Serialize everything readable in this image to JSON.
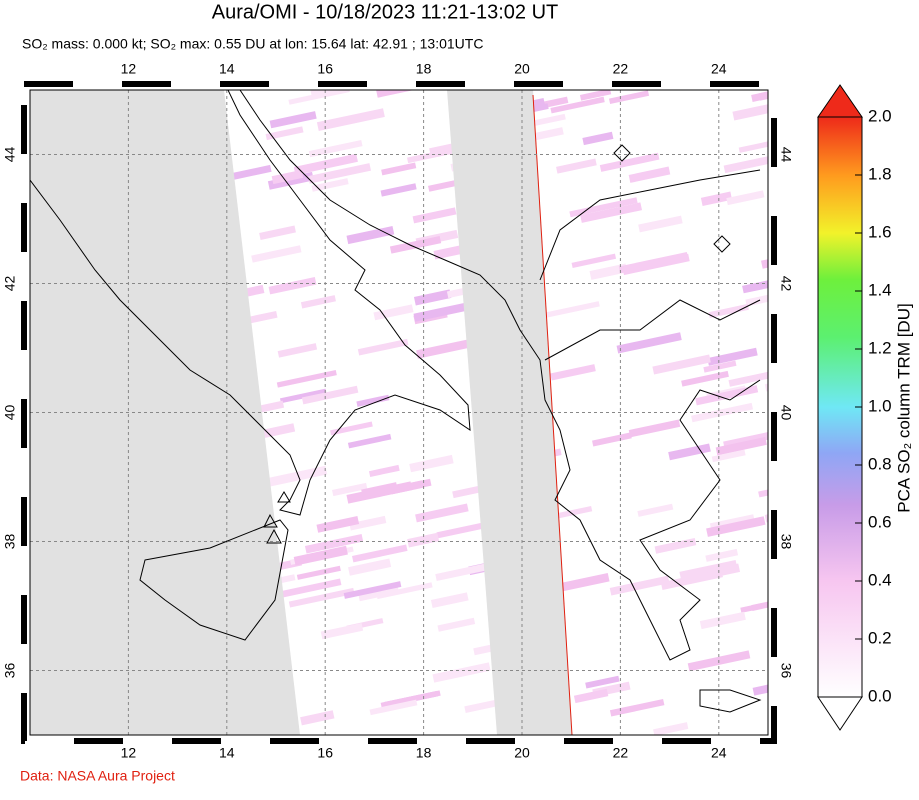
{
  "chart_data": {
    "type": "map",
    "title": "Aura/OMI - 10/18/2023 11:21-13:02 UT",
    "subtitle": "SO₂ mass: 0.000 kt; SO₂ max: 0.55 DU at lon: 15.64 lat: 42.91 ; 13:01UTC",
    "xlim": [
      10,
      25
    ],
    "ylim": [
      35,
      45
    ],
    "xticks": [
      12,
      14,
      16,
      18,
      20,
      22,
      24
    ],
    "yticks": [
      36,
      38,
      40,
      42,
      44
    ],
    "grid": true,
    "colorbar": {
      "label": "PCA SO₂ column TRM [DU]",
      "lim": [
        0,
        2
      ],
      "ticks": [
        {
          "value": 0,
          "label": "0.0"
        },
        0.2,
        0.4,
        0.6,
        0.8,
        {
          "value": 1,
          "label": "1.0"
        },
        1.2,
        1.4,
        1.6,
        1.8,
        {
          "value": 2,
          "label": "2.0"
        }
      ]
    }
  },
  "footer": "Data: NASA Aura Project"
}
